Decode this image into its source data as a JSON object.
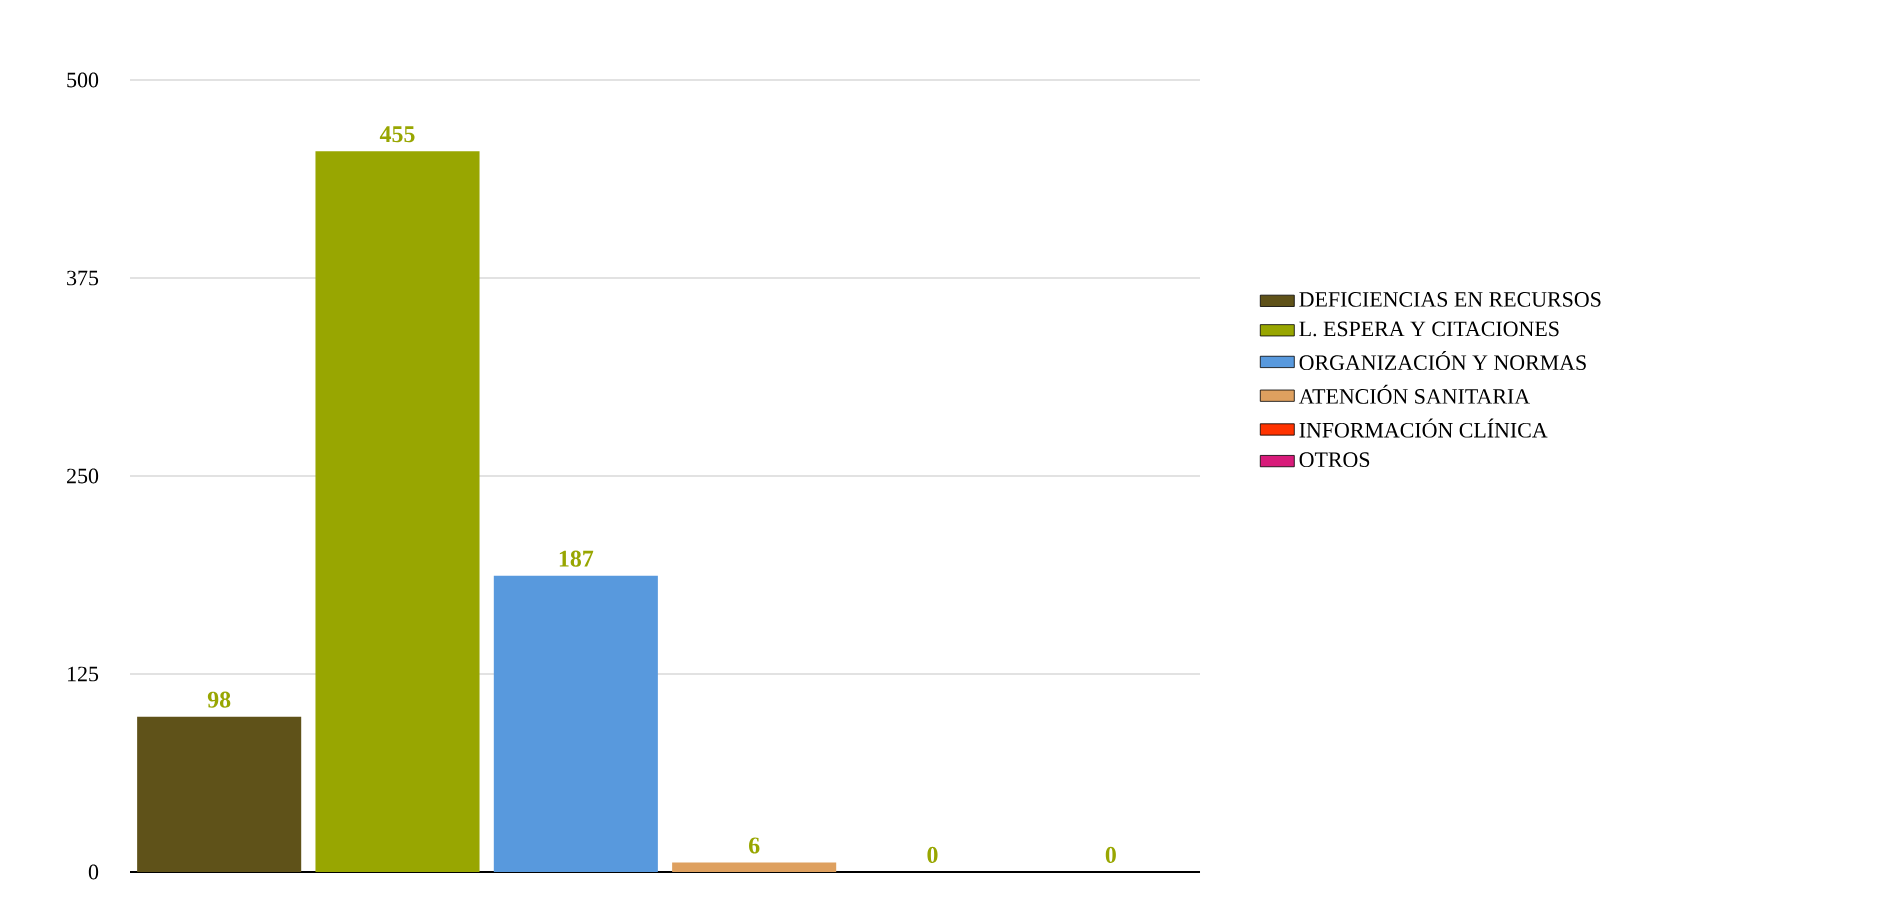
{
  "chart_data": {
    "type": "bar",
    "categories": [
      null,
      null,
      null,
      null,
      null,
      null
    ],
    "series": [
      {
        "name": "DEFICIENCIAS EN RECURSOS",
        "color": "#5f5219",
        "values": [
          98,
          null,
          null,
          null,
          null,
          null
        ]
      },
      {
        "name": "L. ESPERA Y CITACIONES",
        "color": "#98a601",
        "values": [
          null,
          455,
          null,
          null,
          null,
          null
        ]
      },
      {
        "name": "ORGANIZACIÓN Y NORMAS",
        "color": "#5899dd",
        "values": [
          null,
          null,
          187,
          null,
          null,
          null
        ]
      },
      {
        "name": "ATENCIÓN SANITARIA",
        "color": "#dea05f",
        "values": [
          null,
          null,
          null,
          6,
          null,
          null
        ]
      },
      {
        "name": "INFORMACIÓN CLÍNICA",
        "color": "#ff3300",
        "values": [
          null,
          null,
          null,
          null,
          0,
          null
        ]
      },
      {
        "name": "OTROS",
        "color": "#d81b7a",
        "values": [
          null,
          null,
          null,
          null,
          null,
          0
        ]
      }
    ],
    "ylim": [
      0,
      500
    ],
    "yticks": [
      0,
      125,
      250,
      375,
      500
    ],
    "grid": "y",
    "legend": "right",
    "data_labels": true,
    "tick_labels": "y"
  }
}
